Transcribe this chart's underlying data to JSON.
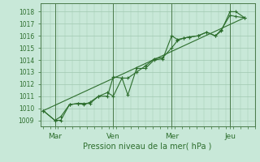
{
  "background_color": "#c8e8d8",
  "grid_color": "#a0c8b0",
  "line_color": "#2d6e2d",
  "marker_color": "#2d6e2d",
  "xlabel": "Pression niveau de la mer( hPa )",
  "ylim": [
    1008.5,
    1018.7
  ],
  "yticks": [
    1009,
    1010,
    1011,
    1012,
    1013,
    1014,
    1015,
    1016,
    1017,
    1018
  ],
  "xtick_labels": [
    "Mar",
    "Ven",
    "Mer",
    "Jeu"
  ],
  "xtick_positions": [
    16,
    96,
    176,
    256
  ],
  "vline_positions": [
    16,
    96,
    176,
    256
  ],
  "xlabel_fontsize": 7,
  "ytick_fontsize": 5.5,
  "xtick_fontsize": 6.5,
  "series1_x": [
    0,
    16,
    24,
    36,
    48,
    56,
    64,
    76,
    88,
    96,
    108,
    116,
    128,
    140,
    152,
    164,
    176,
    184,
    192,
    200,
    212,
    224,
    236,
    244,
    256,
    264,
    276
  ],
  "series1_y": [
    1009.8,
    1009.0,
    1009.0,
    1010.3,
    1010.4,
    1010.4,
    1010.4,
    1011.0,
    1011.0,
    1012.6,
    1012.5,
    1011.1,
    1013.3,
    1013.3,
    1014.0,
    1014.1,
    1016.0,
    1015.7,
    1015.8,
    1015.9,
    1016.0,
    1016.3,
    1016.0,
    1016.4,
    1018.0,
    1018.0,
    1017.5
  ],
  "series2_x": [
    0,
    16,
    24,
    36,
    48,
    56,
    64,
    76,
    88,
    96,
    108,
    116,
    128,
    140,
    152,
    164,
    176,
    184,
    192,
    200,
    212,
    224,
    236,
    244,
    256,
    264,
    276
  ],
  "series2_y": [
    1009.8,
    1009.0,
    1009.3,
    1010.3,
    1010.4,
    1010.3,
    1010.5,
    1011.0,
    1011.3,
    1011.0,
    1012.5,
    1012.5,
    1013.0,
    1013.5,
    1014.1,
    1014.2,
    1015.0,
    1015.6,
    1015.8,
    1015.9,
    1016.0,
    1016.3,
    1016.0,
    1016.5,
    1017.7,
    1017.6,
    1017.5
  ],
  "series3_x": [
    0,
    276
  ],
  "series3_y": [
    1009.8,
    1017.5
  ],
  "xlim": [
    -4,
    290
  ]
}
